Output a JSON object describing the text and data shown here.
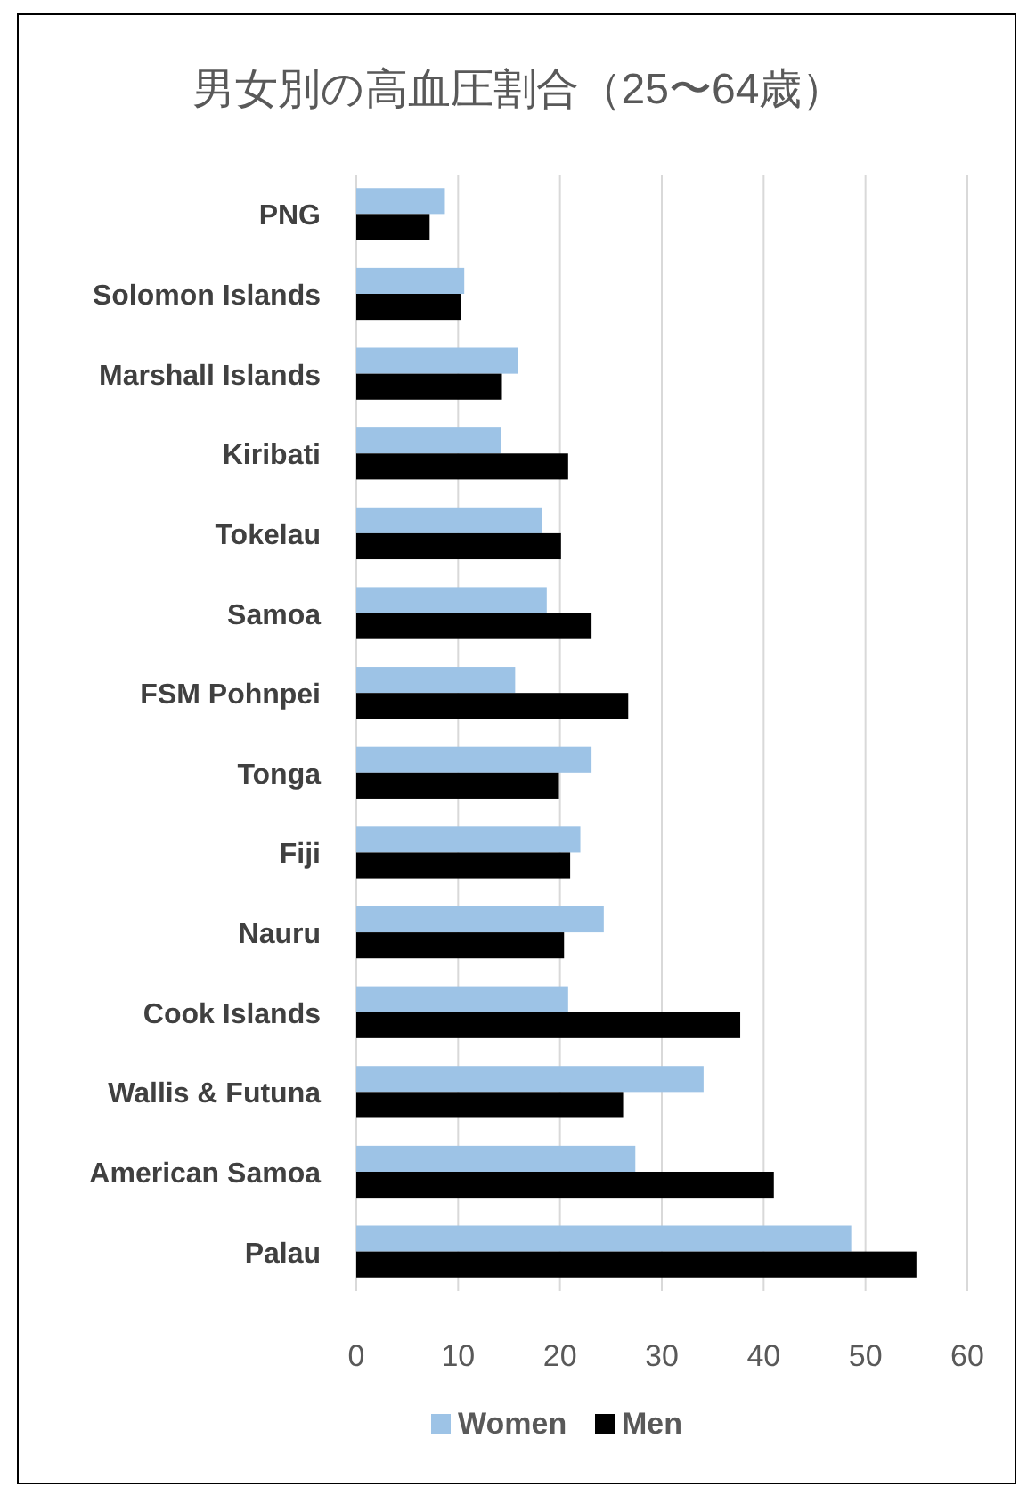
{
  "chart_data": {
    "type": "bar",
    "orientation": "horizontal",
    "title": "男女別の高血圧割合（25〜64歳）",
    "categories": [
      "PNG",
      "Solomon Islands",
      "Marshall Islands",
      "Kiribati",
      "Tokelau",
      "Samoa",
      "FSM Pohnpei",
      "Tonga",
      "Fiji",
      "Nauru",
      "Cook Islands",
      "Wallis & Futuna",
      "American Samoa",
      "Palau"
    ],
    "series": [
      {
        "name": "Women",
        "color": "#9dc3e6",
        "values": [
          8.7,
          10.6,
          15.9,
          14.2,
          18.2,
          18.7,
          15.6,
          23.1,
          22,
          24.3,
          20.8,
          34.1,
          27.4,
          48.6
        ]
      },
      {
        "name": "Men",
        "color": "#000000",
        "values": [
          7.2,
          10.3,
          14.3,
          20.8,
          20.1,
          23.1,
          26.7,
          19.9,
          21,
          20.4,
          37.7,
          26.2,
          41,
          55
        ]
      }
    ],
    "xlim": [
      0,
      60
    ],
    "xticks": [
      0,
      10,
      20,
      30,
      40,
      50,
      60
    ],
    "grid": "x",
    "legend": "bottom"
  }
}
